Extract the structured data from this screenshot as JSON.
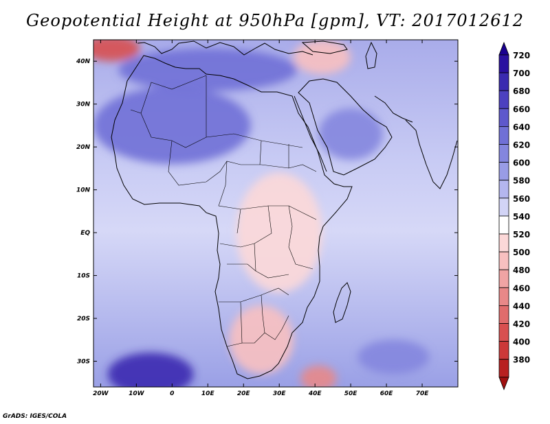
{
  "title": "Geopotential Height at 950hPa [gpm], VT: 2017012612",
  "footer": "GrADS: IGES/COLA",
  "map": {
    "projection": "latlon",
    "lon_range": [
      -22,
      80
    ],
    "lat_range": [
      -36,
      45
    ],
    "lat_labels": [
      {
        "lat": 40,
        "text": "40N"
      },
      {
        "lat": 30,
        "text": "30N"
      },
      {
        "lat": 20,
        "text": "20N"
      },
      {
        "lat": 10,
        "text": "10N"
      },
      {
        "lat": 0,
        "text": "EQ"
      },
      {
        "lat": -10,
        "text": "10S"
      },
      {
        "lat": -20,
        "text": "20S"
      },
      {
        "lat": -30,
        "text": "30S"
      }
    ],
    "lon_labels": [
      {
        "lon": -20,
        "text": "20W"
      },
      {
        "lon": -10,
        "text": "10W"
      },
      {
        "lon": 0,
        "text": "0"
      },
      {
        "lon": 10,
        "text": "10E"
      },
      {
        "lon": 20,
        "text": "20E"
      },
      {
        "lon": 30,
        "text": "30E"
      },
      {
        "lon": 40,
        "text": "40E"
      },
      {
        "lon": 50,
        "text": "50E"
      },
      {
        "lon": 60,
        "text": "60E"
      },
      {
        "lon": 70,
        "text": "70E"
      }
    ]
  },
  "colorbar": {
    "levels": [
      {
        "value": "720",
        "color": "#2a10a0"
      },
      {
        "value": "700",
        "color": "#3a2ab0"
      },
      {
        "value": "680",
        "color": "#4c40c0"
      },
      {
        "value": "660",
        "color": "#5e58cc"
      },
      {
        "value": "640",
        "color": "#7070d6"
      },
      {
        "value": "620",
        "color": "#8486de"
      },
      {
        "value": "600",
        "color": "#999ce6"
      },
      {
        "value": "580",
        "color": "#b4b6ee"
      },
      {
        "value": "560",
        "color": "#d2d4f6"
      },
      {
        "value": "540",
        "color": "#ffffff"
      },
      {
        "value": "520",
        "color": "#fcd8d8"
      },
      {
        "value": "500",
        "color": "#f8c0c0"
      },
      {
        "value": "480",
        "color": "#f0a4a4"
      },
      {
        "value": "460",
        "color": "#e88888"
      },
      {
        "value": "440",
        "color": "#e06c6c"
      },
      {
        "value": "420",
        "color": "#d85050"
      },
      {
        "value": "400",
        "color": "#cc3838"
      },
      {
        "value": "380",
        "color": "#b82020"
      }
    ],
    "top_color": "#1a0090",
    "bottom_color": "#a01010"
  },
  "field": [
    {
      "name": "nw-corner-low",
      "lon": -17,
      "lat": 43,
      "rx": 8,
      "ry": 3,
      "value": 420
    },
    {
      "name": "mediterranean-high",
      "lon": 10,
      "lat": 38,
      "rx": 25,
      "ry": 5,
      "value": 640
    },
    {
      "name": "sahara-high",
      "lon": 0,
      "lat": 25,
      "rx": 22,
      "ry": 9,
      "value": 640
    },
    {
      "name": "arabia-high",
      "lon": 50,
      "lat": 23,
      "rx": 9,
      "ry": 6,
      "value": 620
    },
    {
      "name": "east-africa-low",
      "lon": 30,
      "lat": 0,
      "rx": 12,
      "ry": 14,
      "value": 510
    },
    {
      "name": "southern-africa-low",
      "lon": 25,
      "lat": -25,
      "rx": 9,
      "ry": 8,
      "value": 505
    },
    {
      "name": "south-atlantic-high",
      "lon": -6,
      "lat": -33,
      "rx": 12,
      "ry": 5,
      "value": 700
    },
    {
      "name": "mozambique-channel-low",
      "lon": 41,
      "lat": -34,
      "rx": 5,
      "ry": 3,
      "value": 460
    },
    {
      "name": "south-indian-high",
      "lon": 62,
      "lat": -29,
      "rx": 10,
      "ry": 4,
      "value": 620
    },
    {
      "name": "turkey-iran-low",
      "lon": 42,
      "lat": 41,
      "rx": 8,
      "ry": 4,
      "value": 500
    }
  ]
}
